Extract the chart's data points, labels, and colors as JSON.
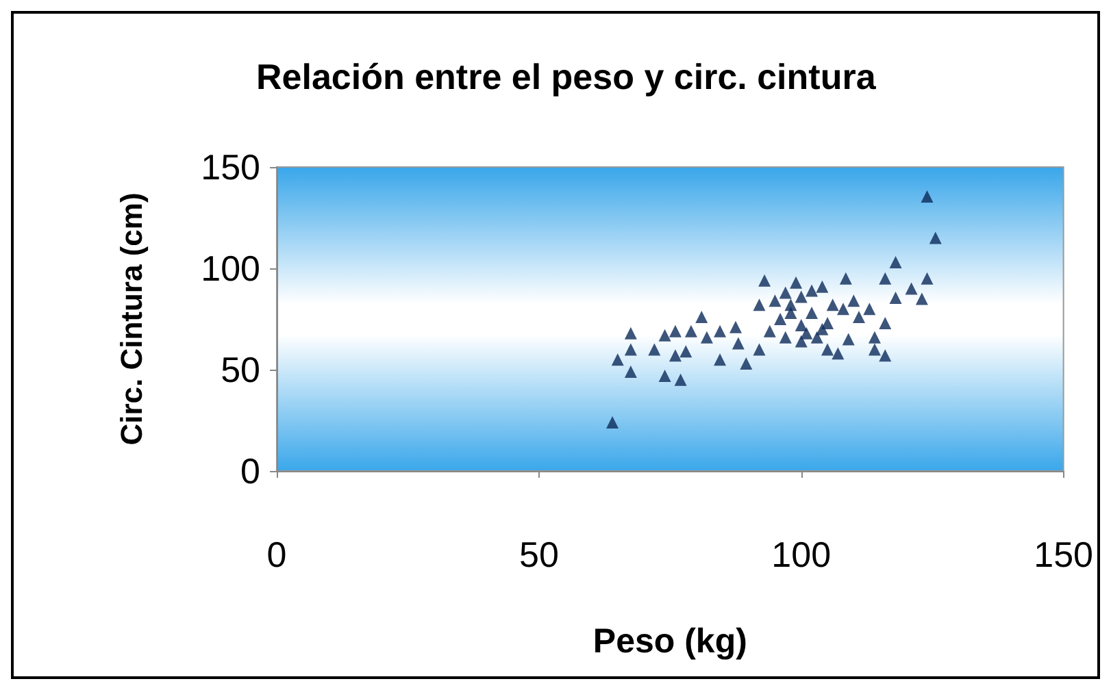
{
  "chart_data": {
    "type": "scatter",
    "title": "Relación entre el peso y circ. cintura",
    "xlabel": "Peso (kg)",
    "ylabel": "Circ. Cintura (cm)",
    "x": [
      64,
      65,
      67.5,
      67.5,
      67.5,
      72,
      74,
      74,
      76,
      77,
      76,
      79,
      78,
      81,
      82,
      84.5,
      84.5,
      87.5,
      88,
      89.5,
      93,
      92,
      92,
      95,
      94,
      99,
      98,
      97,
      102,
      103,
      105,
      96,
      98,
      100,
      104,
      106,
      100,
      97,
      101,
      100,
      102,
      104,
      105,
      108,
      108.5,
      109,
      107,
      110,
      111,
      113,
      114,
      114,
      116,
      116,
      116,
      118,
      118,
      121,
      123,
      124,
      124,
      125.6
    ],
    "values": [
      24,
      55,
      68,
      60,
      49,
      60,
      67,
      47,
      69,
      45,
      57,
      69,
      59,
      76,
      66,
      55,
      69,
      71,
      63,
      53,
      94,
      82,
      60,
      84,
      69,
      93,
      82,
      66,
      89,
      66,
      60,
      75,
      78,
      72,
      70,
      82,
      86,
      88,
      68,
      64,
      78,
      91,
      73,
      80,
      95,
      65,
      58,
      84,
      76,
      80,
      66,
      60,
      73,
      95,
      57,
      103,
      85.5,
      90,
      85,
      95,
      135.5,
      115
    ],
    "color": "#0d2a5a",
    "marker": "triangle",
    "xlim": [
      0,
      150
    ],
    "xticks": [
      0,
      50,
      100,
      150
    ],
    "ylim": [
      0,
      150
    ],
    "yticks": [
      0,
      50,
      100,
      150
    ],
    "grid": false
  }
}
